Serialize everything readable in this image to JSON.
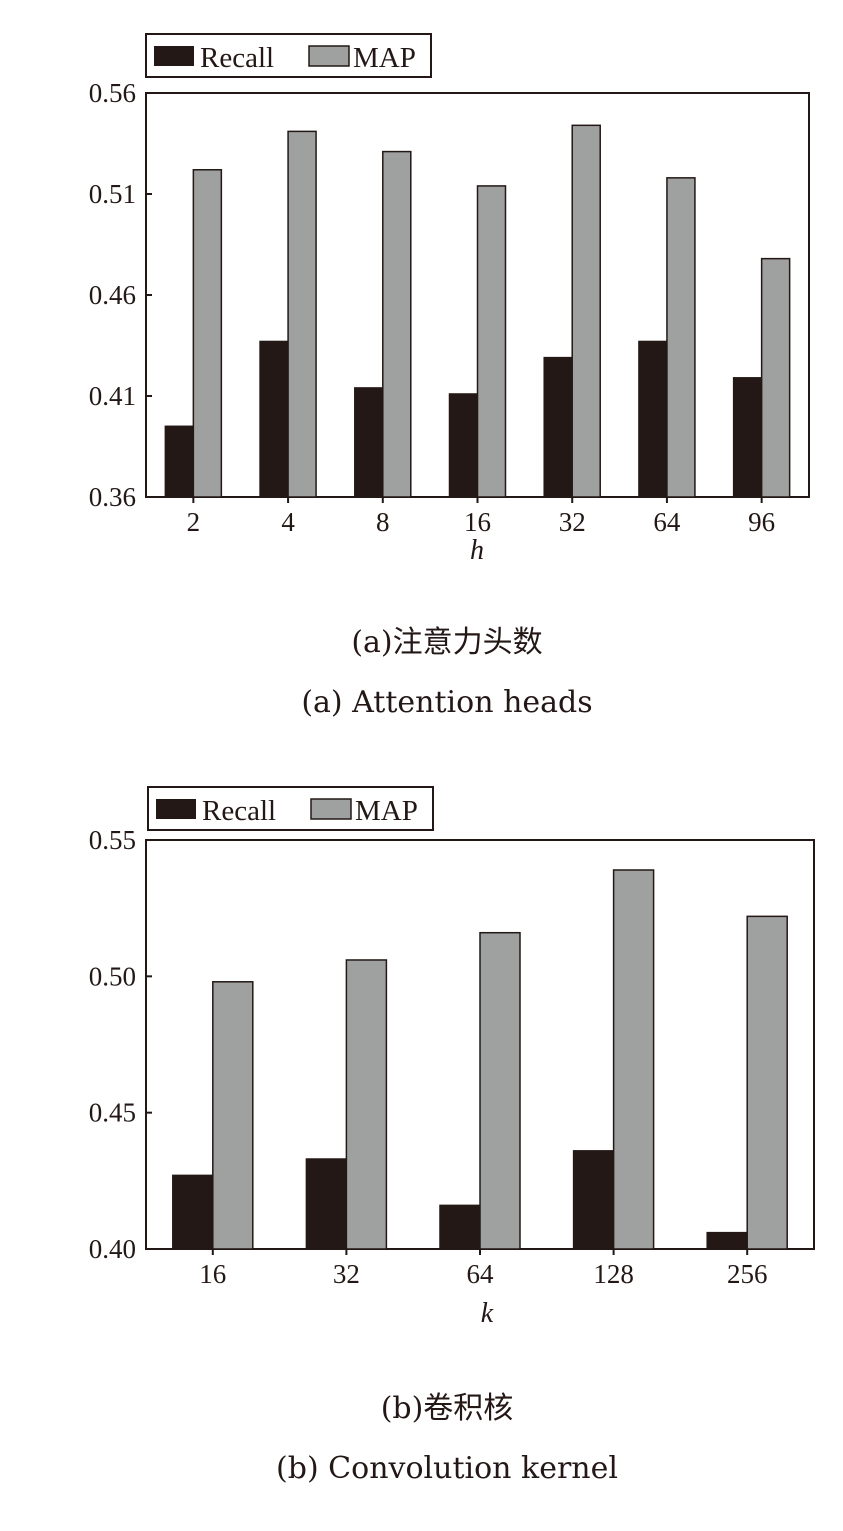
{
  "colors": {
    "recall": "#231815",
    "map": "#9fa0a0",
    "axis": "#231815"
  },
  "chart_data": [
    {
      "type": "bar",
      "xlabel": "h",
      "ylabel": "",
      "categories": [
        "2",
        "4",
        "8",
        "16",
        "32",
        "64",
        "96"
      ],
      "ylim": [
        0.36,
        0.56
      ],
      "yticks": [
        "0.36",
        "0.41",
        "0.46",
        "0.51",
        "0.56"
      ],
      "legend": "top-left, outside",
      "grid": false,
      "series": [
        {
          "name": "Recall",
          "values": [
            0.395,
            0.437,
            0.414,
            0.411,
            0.429,
            0.437,
            0.419
          ]
        },
        {
          "name": "MAP",
          "values": [
            0.522,
            0.541,
            0.531,
            0.514,
            0.544,
            0.518,
            0.478
          ]
        }
      ],
      "caption_cn": "(a)注意力头数",
      "caption_en": "(a) Attention heads"
    },
    {
      "type": "bar",
      "xlabel": "k",
      "ylabel": "",
      "categories": [
        "16",
        "32",
        "64",
        "128",
        "256"
      ],
      "ylim": [
        0.4,
        0.55
      ],
      "yticks": [
        "0.40",
        "0.45",
        "0.50",
        "0.55"
      ],
      "legend": "top-left, outside",
      "grid": false,
      "series": [
        {
          "name": "Recall",
          "values": [
            0.427,
            0.433,
            0.416,
            0.436,
            0.406
          ]
        },
        {
          "name": "MAP",
          "values": [
            0.498,
            0.506,
            0.516,
            0.539,
            0.522
          ]
        }
      ],
      "caption_cn": "(b)卷积核",
      "caption_en": "(b) Convolution kernel"
    }
  ]
}
